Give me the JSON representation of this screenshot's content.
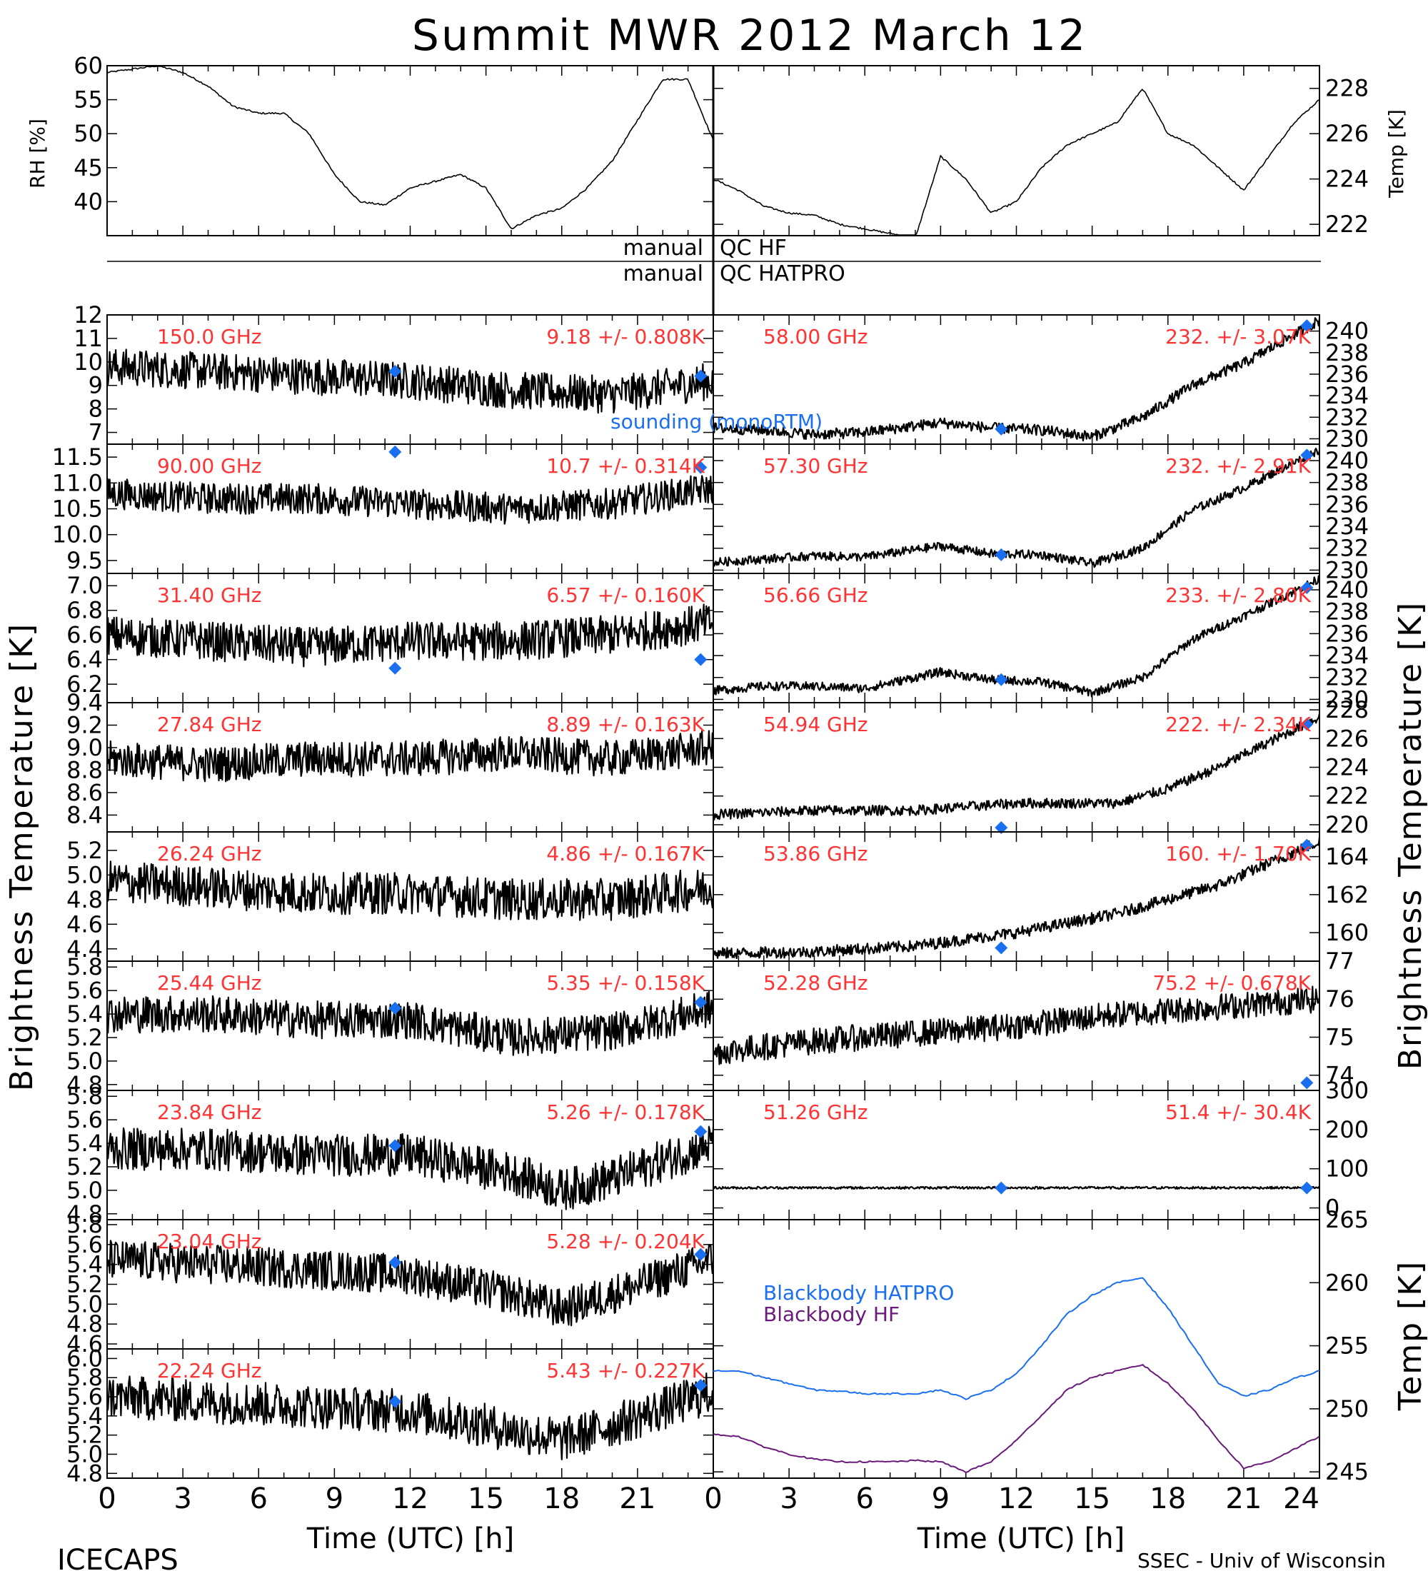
{
  "title": "Summit MWR 2012 March 12",
  "footer": {
    "left": "ICECAPS",
    "right": "SSEC - Univ of Wisconsin"
  },
  "colors": {
    "channel_label": "#ff3333",
    "sounding": "#1a6ff0",
    "hatpro": "#1a6ff0",
    "hf": "#6a1a7a",
    "trace": "#000000"
  },
  "qc": {
    "left_top": "manual",
    "right_top": "QC HF",
    "left_bottom": "manual",
    "right_bottom": "QC HATPRO"
  },
  "legend_sounding": "sounding (monoRTM)",
  "chart_data": [
    {
      "id": "rh",
      "type": "line",
      "ylabel": "RH [%]",
      "ylim": [
        35,
        60
      ],
      "yticks": [
        40,
        45,
        50,
        55,
        60
      ],
      "ytick_labels": [
        "40",
        "45",
        "50",
        "55",
        "60"
      ],
      "xlim": [
        0,
        24
      ],
      "x": [
        0,
        1,
        2,
        3,
        4,
        5,
        6,
        7,
        8,
        9,
        10,
        11,
        12,
        13,
        14,
        15,
        16,
        17,
        18,
        19,
        20,
        21,
        22,
        23,
        24
      ],
      "y": [
        59,
        59.5,
        60,
        59,
        57,
        54,
        53,
        53,
        50,
        44,
        40,
        39.5,
        42,
        43,
        44,
        42,
        36,
        38,
        39,
        42,
        46,
        52,
        58,
        58,
        49
      ]
    },
    {
      "id": "temp",
      "type": "line",
      "ylabel": "Temp [K]",
      "ylim": [
        221.5,
        229
      ],
      "yticks": [
        222,
        224,
        226,
        228
      ],
      "ytick_labels": [
        "222",
        "224",
        "226",
        "228"
      ],
      "xlim": [
        0,
        24
      ],
      "x": [
        0,
        1,
        2,
        3,
        4,
        5,
        6,
        7,
        8,
        9,
        10,
        11,
        12,
        13,
        14,
        15,
        16,
        17,
        18,
        19,
        20,
        21,
        22,
        23,
        24
      ],
      "y": [
        224,
        223.5,
        222.8,
        222.5,
        222.4,
        222,
        221.8,
        221.6,
        221.4,
        225,
        224,
        222.5,
        223,
        224.5,
        225.5,
        226,
        226.5,
        228,
        226,
        225.5,
        224.5,
        223.5,
        225,
        226.5,
        227.5
      ]
    },
    {
      "id": "c150",
      "type": "scatter",
      "label": "150.0 GHz",
      "stats": "9.18 +/- 0.808K",
      "ylim": [
        6.5,
        12
      ],
      "yticks": [
        7,
        8,
        9,
        10,
        11,
        12
      ],
      "ytick_labels": [
        "7",
        "8",
        "9",
        "10",
        "11",
        "12"
      ],
      "xlim": [
        0,
        24
      ],
      "x": [
        0,
        4,
        8,
        12,
        16,
        20,
        24
      ],
      "y": [
        9.8,
        9.6,
        9.4,
        9.2,
        8.8,
        8.6,
        9.2
      ],
      "noise": 0.8,
      "sounding": [
        [
          11.4,
          9.6
        ],
        [
          23.5,
          9.4
        ]
      ]
    },
    {
      "id": "c90",
      "type": "scatter",
      "label": "90.00 GHz",
      "stats": "10.7 +/- 0.314K",
      "ylim": [
        9.25,
        11.75
      ],
      "yticks": [
        9.5,
        10,
        10.5,
        11,
        11.5
      ],
      "ytick_labels": [
        "9.5",
        "10.0",
        "10.5",
        "11.0",
        "11.5"
      ],
      "xlim": [
        0,
        24
      ],
      "x": [
        0,
        4,
        8,
        12,
        16,
        20,
        24
      ],
      "y": [
        10.8,
        10.7,
        10.7,
        10.6,
        10.5,
        10.6,
        10.9
      ],
      "noise": 0.3,
      "sounding": [
        [
          11.4,
          11.6
        ],
        [
          23.5,
          11.3
        ]
      ]
    },
    {
      "id": "c31",
      "type": "scatter",
      "label": "31.40 GHz",
      "stats": "6.57 +/- 0.160K",
      "ylim": [
        6.05,
        7.1
      ],
      "yticks": [
        6.2,
        6.4,
        6.6,
        6.8,
        7.0
      ],
      "ytick_labels": [
        "6.2",
        "6.4",
        "6.6",
        "6.8",
        "7.0"
      ],
      "xlim": [
        0,
        24
      ],
      "x": [
        0,
        4,
        8,
        12,
        16,
        20,
        24
      ],
      "y": [
        6.6,
        6.55,
        6.5,
        6.55,
        6.55,
        6.6,
        6.7
      ],
      "noise": 0.16,
      "sounding": [
        [
          11.4,
          6.33
        ],
        [
          23.5,
          6.4
        ]
      ]
    },
    {
      "id": "c27",
      "type": "scatter",
      "label": "27.84 GHz",
      "stats": "8.89 +/- 0.163K",
      "ylim": [
        8.25,
        9.4
      ],
      "yticks": [
        8.4,
        8.6,
        8.8,
        9.0,
        9.2,
        9.4
      ],
      "ytick_labels": [
        "8.4",
        "8.6",
        "8.8",
        "9.0",
        "9.2",
        "9.4"
      ],
      "xlim": [
        0,
        24
      ],
      "x": [
        0,
        4,
        8,
        12,
        16,
        20,
        24
      ],
      "y": [
        8.9,
        8.85,
        8.9,
        8.9,
        8.95,
        8.9,
        9.0
      ],
      "noise": 0.16,
      "sounding": []
    },
    {
      "id": "c26",
      "type": "scatter",
      "label": "26.24 GHz",
      "stats": "4.86 +/- 0.167K",
      "ylim": [
        4.3,
        5.35
      ],
      "yticks": [
        4.4,
        4.6,
        4.8,
        5.0,
        5.2
      ],
      "ytick_labels": [
        "4.4",
        "4.6",
        "4.8",
        "5.0",
        "5.2"
      ],
      "xlim": [
        0,
        24
      ],
      "x": [
        0,
        4,
        8,
        12,
        16,
        20,
        24
      ],
      "y": [
        4.95,
        4.9,
        4.85,
        4.85,
        4.8,
        4.8,
        4.9
      ],
      "noise": 0.17,
      "sounding": []
    },
    {
      "id": "c25",
      "type": "scatter",
      "label": "25.44 GHz",
      "stats": "5.35 +/- 0.158K",
      "ylim": [
        4.75,
        5.85
      ],
      "yticks": [
        4.8,
        5.0,
        5.2,
        5.4,
        5.6,
        5.8
      ],
      "ytick_labels": [
        "4.8",
        "5.0",
        "5.2",
        "5.4",
        "5.6",
        "5.8"
      ],
      "xlim": [
        0,
        24
      ],
      "x": [
        0,
        4,
        8,
        12,
        16,
        20,
        24
      ],
      "y": [
        5.4,
        5.4,
        5.35,
        5.35,
        5.2,
        5.25,
        5.45
      ],
      "noise": 0.16,
      "sounding": [
        [
          11.4,
          5.45
        ],
        [
          23.5,
          5.5
        ]
      ]
    },
    {
      "id": "c23",
      "type": "scatter",
      "label": "23.84 GHz",
      "stats": "5.26 +/- 0.178K",
      "ylim": [
        4.75,
        5.85
      ],
      "yticks": [
        4.8,
        5.0,
        5.2,
        5.4,
        5.6,
        5.8
      ],
      "ytick_labels": [
        "4.8",
        "5.0",
        "5.2",
        "5.4",
        "5.6",
        "5.8"
      ],
      "xlim": [
        0,
        24
      ],
      "x": [
        0,
        4,
        8,
        12,
        16,
        18,
        20,
        24
      ],
      "y": [
        5.35,
        5.35,
        5.3,
        5.3,
        5.15,
        5.0,
        5.1,
        5.4
      ],
      "noise": 0.18,
      "sounding": [
        [
          11.4,
          5.38
        ],
        [
          23.5,
          5.5
        ]
      ]
    },
    {
      "id": "c23b",
      "type": "scatter",
      "label": "23.04 GHz",
      "stats": "5.28 +/- 0.204K",
      "ylim": [
        4.55,
        5.85
      ],
      "yticks": [
        4.6,
        4.8,
        5.0,
        5.2,
        5.4,
        5.6,
        5.8
      ],
      "ytick_labels": [
        "4.6",
        "4.8",
        "5.0",
        "5.2",
        "5.4",
        "5.6",
        "5.8"
      ],
      "xlim": [
        0,
        24
      ],
      "x": [
        0,
        4,
        8,
        12,
        16,
        18,
        20,
        24
      ],
      "y": [
        5.45,
        5.4,
        5.35,
        5.3,
        5.1,
        4.95,
        5.1,
        5.45
      ],
      "noise": 0.2,
      "sounding": [
        [
          11.4,
          5.42
        ],
        [
          23.5,
          5.5
        ]
      ]
    },
    {
      "id": "c22",
      "type": "scatter",
      "label": "22.24 GHz",
      "stats": "5.43 +/- 0.227K",
      "ylim": [
        4.75,
        6.1
      ],
      "yticks": [
        4.8,
        5.0,
        5.2,
        5.4,
        5.6,
        5.8,
        6.0
      ],
      "ytick_labels": [
        "4.8",
        "5.0",
        "5.2",
        "5.4",
        "5.6",
        "5.8",
        "6.0"
      ],
      "xlim": [
        0,
        24
      ],
      "x": [
        0,
        4,
        8,
        12,
        16,
        18,
        20,
        24
      ],
      "y": [
        5.6,
        5.55,
        5.5,
        5.45,
        5.25,
        5.15,
        5.3,
        5.65
      ],
      "noise": 0.23,
      "sounding": [
        [
          11.4,
          5.55
        ],
        [
          23.5,
          5.72
        ]
      ]
    },
    {
      "id": "c58",
      "type": "scatter",
      "label": "58.00 GHz",
      "stats": "232. +/- 3.07K",
      "ylim": [
        229.5,
        241.5
      ],
      "yticks": [
        230,
        232,
        234,
        236,
        238,
        240
      ],
      "ytick_labels": [
        "230",
        "232",
        "234",
        "236",
        "238",
        "240"
      ],
      "xlim": [
        0,
        24
      ],
      "x": [
        0,
        2,
        4,
        6,
        9,
        11,
        13,
        15,
        17,
        19,
        21,
        24
      ],
      "y": [
        231,
        230.8,
        230.4,
        230.6,
        231.5,
        231,
        230.8,
        230.2,
        232,
        235,
        237,
        241
      ],
      "noise": 0.5,
      "sounding": [
        [
          11.4,
          230.9
        ],
        [
          23.5,
          240.5
        ]
      ]
    },
    {
      "id": "c57",
      "type": "scatter",
      "label": "57.30 GHz",
      "stats": "232. +/- 2.91K",
      "ylim": [
        229.7,
        241.5
      ],
      "yticks": [
        230,
        232,
        234,
        236,
        238,
        240
      ],
      "ytick_labels": [
        "230",
        "232",
        "234",
        "236",
        "238",
        "240"
      ],
      "xlim": [
        0,
        24
      ],
      "x": [
        0,
        2,
        4,
        6,
        9,
        11,
        13,
        15,
        17,
        19,
        21,
        24
      ],
      "y": [
        230.7,
        231,
        231.3,
        231.2,
        232.2,
        231.5,
        231.4,
        230.6,
        232,
        235.5,
        237.5,
        241
      ],
      "noise": 0.4,
      "sounding": [
        [
          11.4,
          231.4
        ],
        [
          23.5,
          240.5
        ]
      ]
    },
    {
      "id": "c56",
      "type": "scatter",
      "label": "56.66 GHz",
      "stats": "233. +/- 2.80K",
      "ylim": [
        229.7,
        241.5
      ],
      "yticks": [
        230,
        232,
        234,
        236,
        238,
        240
      ],
      "ytick_labels": [
        "230",
        "232",
        "234",
        "236",
        "238",
        "240"
      ],
      "xlim": [
        0,
        24
      ],
      "x": [
        0,
        2,
        4,
        6,
        9,
        11,
        13,
        15,
        17,
        19,
        21,
        24
      ],
      "y": [
        230.8,
        231.2,
        231.2,
        231,
        232.5,
        231.8,
        231.6,
        230.6,
        232,
        235.5,
        237.6,
        241
      ],
      "noise": 0.4,
      "sounding": [
        [
          11.4,
          231.8
        ],
        [
          23.5,
          240.2
        ]
      ]
    },
    {
      "id": "c54",
      "type": "scatter",
      "label": "54.94 GHz",
      "stats": "222. +/- 2.34K",
      "ylim": [
        219.5,
        228.5
      ],
      "yticks": [
        220,
        222,
        224,
        226,
        228
      ],
      "ytick_labels": [
        "220",
        "222",
        "224",
        "226",
        "228"
      ],
      "xlim": [
        0,
        24
      ],
      "x": [
        0,
        4,
        8,
        12,
        16,
        18,
        20,
        24
      ],
      "y": [
        220.7,
        221,
        221,
        221.5,
        221.5,
        222.5,
        224,
        227.5
      ],
      "noise": 0.35,
      "sounding": [
        [
          11.4,
          219.8
        ],
        [
          23.5,
          227
        ]
      ]
    },
    {
      "id": "c53",
      "type": "scatter",
      "label": "53.86 GHz",
      "stats": "160. +/- 1.70K",
      "ylim": [
        158.5,
        165.3
      ],
      "yticks": [
        160,
        162,
        164
      ],
      "ytick_labels": [
        "160",
        "162",
        "164"
      ],
      "xlim": [
        0,
        24
      ],
      "x": [
        0,
        4,
        8,
        12,
        16,
        20,
        24
      ],
      "y": [
        158.9,
        159,
        159.3,
        160,
        161,
        162.5,
        164.8
      ],
      "noise": 0.3,
      "sounding": [
        [
          11.4,
          159.2
        ],
        [
          23.5,
          164.6
        ]
      ]
    },
    {
      "id": "c52",
      "type": "scatter",
      "label": "52.28 GHz",
      "stats": "75.2 +/- 0.678K",
      "ylim": [
        73.6,
        77
      ],
      "yticks": [
        74,
        75,
        76,
        77
      ],
      "ytick_labels": [
        "74",
        "75",
        "76",
        "77"
      ],
      "xlim": [
        0,
        24
      ],
      "x": [
        0,
        4,
        8,
        12,
        16,
        20,
        24
      ],
      "y": [
        74.6,
        74.9,
        75.1,
        75.3,
        75.6,
        75.8,
        76
      ],
      "noise": 0.35,
      "sounding": [
        [
          23.5,
          73.8
        ]
      ]
    },
    {
      "id": "c51",
      "type": "scatter",
      "label": "51.26 GHz",
      "stats": "51.4 +/- 30.4K",
      "ylim": [
        -30,
        300
      ],
      "yticks": [
        0,
        100,
        200,
        300
      ],
      "ytick_labels": [
        "0",
        "100",
        "200",
        "300"
      ],
      "xlim": [
        0,
        24
      ],
      "x": [
        0,
        24
      ],
      "y": [
        51.4,
        51.4
      ],
      "noise": 3,
      "sounding": [
        [
          11.4,
          51
        ],
        [
          23.5,
          51
        ]
      ]
    },
    {
      "id": "bb",
      "type": "line",
      "ylabel": "Temp [K]",
      "ylim": [
        244.5,
        265
      ],
      "yticks": [
        245,
        250,
        255,
        260,
        265
      ],
      "ytick_labels": [
        "245",
        "250",
        "255",
        "260",
        "265"
      ],
      "xlim": [
        0,
        24
      ],
      "series": [
        {
          "name": "Blackbody HATPRO",
          "color": "#1a6ff0",
          "x": [
            0,
            1,
            2,
            3,
            4,
            5,
            6,
            7,
            8,
            9,
            10,
            11,
            12,
            13,
            14,
            15,
            16,
            17,
            18,
            19,
            20,
            21,
            22,
            23,
            24
          ],
          "y": [
            253,
            253,
            252.5,
            252,
            251.5,
            251.4,
            251.2,
            251.2,
            251.2,
            251.5,
            250.8,
            251.5,
            252.8,
            255,
            257.5,
            259,
            260,
            260.4,
            258,
            255,
            252,
            251,
            251.5,
            252.4,
            253
          ]
        },
        {
          "name": "Blackbody HF",
          "color": "#6a1a7a",
          "x": [
            0,
            1,
            2,
            3,
            4,
            5,
            6,
            7,
            8,
            9,
            10,
            11,
            12,
            13,
            14,
            15,
            16,
            17,
            18,
            19,
            20,
            21,
            22,
            23,
            24
          ],
          "y": [
            248,
            247.8,
            247,
            246.4,
            246,
            245.8,
            245.8,
            245.8,
            245.9,
            245.8,
            245,
            245.8,
            247.5,
            249.5,
            251.5,
            252.5,
            253,
            253.5,
            252,
            250,
            247.5,
            245.3,
            245.8,
            246.8,
            247.8
          ]
        }
      ]
    }
  ],
  "axes_text": {
    "time_xlabel": "Time (UTC) [h]",
    "xtick_labels_left": [
      "0",
      "3",
      "6",
      "9",
      "12",
      "15",
      "18",
      "21"
    ],
    "xtick_labels_right": [
      "0",
      "3",
      "6",
      "9",
      "12",
      "15",
      "18",
      "21",
      "24"
    ],
    "rh_label": "RH [%]",
    "temp_label": "Temp [K]",
    "tb_label_left": "Brightness Temperature [K]",
    "tb_label_right": "Brightness Temperature [K]",
    "bb_label": "Temp [K]"
  }
}
